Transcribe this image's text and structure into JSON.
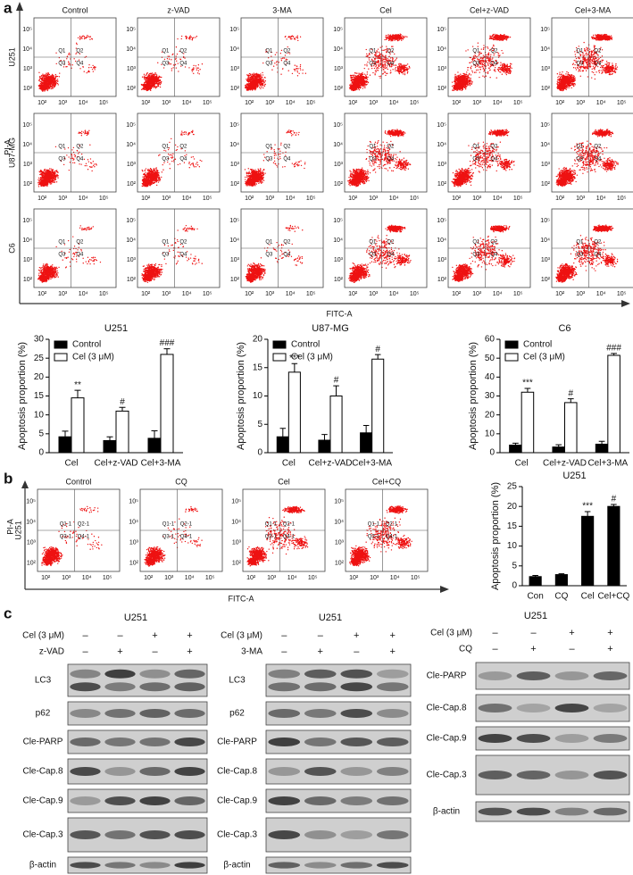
{
  "panel_labels": [
    "a",
    "b",
    "c"
  ],
  "flow_a": {
    "columns": [
      "Control",
      "z-VAD",
      "3-MA",
      "Cel",
      "Cel+z-VAD",
      "Cel+3-MA"
    ],
    "rows": [
      "U251",
      "U87-MG",
      "C6"
    ],
    "y_label": "PI-A",
    "x_label": "FITC-A",
    "ticks": [
      "10²",
      "10³",
      "10⁴",
      "10⁵"
    ],
    "quadrants": [
      "Q1",
      "Q2",
      "Q3",
      "Q4"
    ]
  },
  "chart_data": [
    {
      "type": "bar",
      "title": "U251",
      "ylabel": "Apoptosis proportion (%)",
      "categories": [
        "Cel",
        "Cel+z-VAD",
        "Cel+3-MA"
      ],
      "series": [
        {
          "name": "Control",
          "color": "#000000",
          "values": [
            4.2,
            3.2,
            3.8
          ],
          "errors": [
            1.5,
            1,
            2
          ]
        },
        {
          "name": "Cel (3 μM)",
          "color": "#ffffff",
          "values": [
            14.5,
            11,
            26
          ],
          "errors": [
            2,
            1,
            1.5
          ]
        }
      ],
      "annotations": [
        "**",
        "#",
        "###"
      ],
      "ylim": [
        0,
        30
      ],
      "yticks": [
        0,
        5,
        10,
        15,
        20,
        25,
        30
      ],
      "legend": "top-left"
    },
    {
      "type": "bar",
      "title": "U87-MG",
      "ylabel": "Apoptosis proportion (%)",
      "categories": [
        "Cel",
        "Cel+z-VAD",
        "Cel+3-MA"
      ],
      "series": [
        {
          "name": "Control",
          "color": "#000000",
          "values": [
            2.8,
            2.2,
            3.5
          ],
          "errors": [
            1.5,
            1,
            1.3
          ]
        },
        {
          "name": "Cel (3 μM)",
          "color": "#ffffff",
          "values": [
            14.2,
            10,
            16.5
          ],
          "errors": [
            1.5,
            1.8,
            0.8
          ]
        }
      ],
      "annotations": [
        "***",
        "#",
        "#"
      ],
      "ylim": [
        0,
        20
      ],
      "yticks": [
        0,
        5,
        10,
        15,
        20
      ],
      "legend": "top-left"
    },
    {
      "type": "bar",
      "title": "C6",
      "ylabel": "Apoptosis proportion (%)",
      "categories": [
        "Cel",
        "Cel+z-VAD",
        "Cel+3-MA"
      ],
      "series": [
        {
          "name": "Control",
          "color": "#000000",
          "values": [
            4,
            3,
            4.5
          ],
          "errors": [
            1,
            1.2,
            1.5
          ]
        },
        {
          "name": "Cel (3 μM)",
          "color": "#ffffff",
          "values": [
            32,
            26.5,
            51.5
          ],
          "errors": [
            2,
            2,
            1
          ]
        }
      ],
      "annotations": [
        "***",
        "#",
        "###"
      ],
      "ylim": [
        0,
        60
      ],
      "yticks": [
        0,
        10,
        20,
        30,
        40,
        50,
        60
      ],
      "legend": "top-left"
    },
    {
      "type": "bar",
      "title": "U251",
      "ylabel": "Apoptosis proportion (%)",
      "categories": [
        "Con",
        "CQ",
        "Cel",
        "Cel+CQ"
      ],
      "values": [
        2.3,
        2.8,
        17.5,
        20
      ],
      "errors": [
        0.3,
        0.2,
        1.2,
        0.5
      ],
      "color": "#000000",
      "annotations": [
        null,
        null,
        "***",
        "#"
      ],
      "ylim": [
        0,
        25
      ],
      "yticks": [
        0,
        5,
        10,
        15,
        20,
        25
      ]
    }
  ],
  "flow_b": {
    "columns": [
      "Control",
      "CQ",
      "Cel",
      "Cel+CQ"
    ],
    "rows": [
      "U251"
    ],
    "y_label": "PI-A",
    "x_label": "FITC-A",
    "ticks": [
      "10²",
      "10³",
      "10⁴",
      "10⁵"
    ],
    "quadrants": [
      "Q1-1",
      "Q2-1",
      "Q3-1",
      "Q4-1"
    ]
  },
  "blots": [
    {
      "title": "U251",
      "treatments": [
        {
          "name": "Cel (3 μM)",
          "signs": [
            "–",
            "–",
            "+",
            "+"
          ]
        },
        {
          "name": "z-VAD",
          "signs": [
            "–",
            "+",
            "–",
            "+"
          ]
        }
      ],
      "proteins": [
        "LC3",
        "p62",
        "Cle-PARP",
        "Cle-Cap.8",
        "Cle-Cap.9",
        "Cle-Cap.3",
        "β-actin"
      ]
    },
    {
      "title": "U251",
      "treatments": [
        {
          "name": "Cel (3 μM)",
          "signs": [
            "–",
            "–",
            "+",
            "+"
          ]
        },
        {
          "name": "3-MA",
          "signs": [
            "–",
            "+",
            "–",
            "+"
          ]
        }
      ],
      "proteins": [
        "LC3",
        "p62",
        "Cle-PARP",
        "Cle-Cap.8",
        "Cle-Cap.9",
        "Cle-Cap.3",
        "β-actin"
      ]
    },
    {
      "title": "U251",
      "treatments": [
        {
          "name": "Cel (3 μM)",
          "signs": [
            "–",
            "–",
            "+",
            "+"
          ]
        },
        {
          "name": "CQ",
          "signs": [
            "–",
            "+",
            "–",
            "+"
          ]
        }
      ],
      "proteins": [
        "Cle-PARP",
        "Cle-Cap.8",
        "Cle-Cap.9",
        "Cle-Cap.3",
        "β-actin"
      ]
    }
  ]
}
